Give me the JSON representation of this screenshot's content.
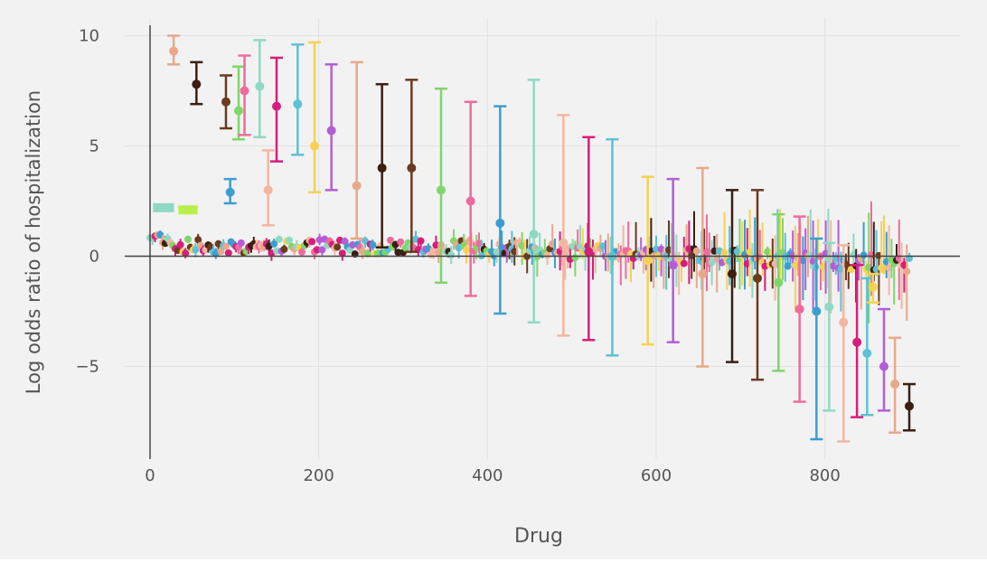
{
  "colors": {
    "background": "#f2f2f2",
    "grid": "#e2e2e2",
    "axis": "#444444",
    "text": "#555555",
    "palette": [
      "#e8a88a",
      "#3b9ed1",
      "#f7d154",
      "#7fd66a",
      "#d61f7a",
      "#3b1f12",
      "#8fd8c4",
      "#b35ed6",
      "#f06a9e",
      "#5cc1d6",
      "#6b3a1f",
      "#f4b6a0"
    ]
  },
  "chart_data": {
    "type": "scatter",
    "title": "",
    "xlabel": "Drug",
    "ylabel": "Log odds ratio of hospitalization",
    "xlim": [
      -30,
      960
    ],
    "ylim": [
      -9.2,
      10.8
    ],
    "xticks": [
      0,
      200,
      400,
      600,
      800
    ],
    "yticks": [
      -5,
      0,
      5,
      10
    ],
    "xtick_labels": [
      "0",
      "200",
      "400",
      "600",
      "800"
    ],
    "ytick_labels": [
      "−5",
      "0",
      "5",
      "10"
    ],
    "grid": true,
    "error_bars": true,
    "series": [
      {
        "points": [
          {
            "x": 28,
            "y": 9.3,
            "lo": 8.7,
            "hi": 10.0
          },
          {
            "x": 55,
            "y": 7.8,
            "lo": 6.9,
            "hi": 8.8
          },
          {
            "x": 90,
            "y": 7.0,
            "lo": 5.8,
            "hi": 8.2
          },
          {
            "x": 105,
            "y": 6.6,
            "lo": 5.3,
            "hi": 8.6
          },
          {
            "x": 112,
            "y": 7.5,
            "lo": 5.5,
            "hi": 9.1
          },
          {
            "x": 95,
            "y": 2.9,
            "lo": 2.4,
            "hi": 3.5
          },
          {
            "x": 130,
            "y": 7.7,
            "lo": 5.4,
            "hi": 9.8
          },
          {
            "x": 140,
            "y": 3.0,
            "lo": 1.4,
            "hi": 4.8
          },
          {
            "x": 150,
            "y": 6.8,
            "lo": 4.3,
            "hi": 9.0
          },
          {
            "x": 175,
            "y": 6.9,
            "lo": 4.6,
            "hi": 9.6
          },
          {
            "x": 195,
            "y": 5.0,
            "lo": 2.9,
            "hi": 9.7
          },
          {
            "x": 215,
            "y": 5.7,
            "lo": 3.0,
            "hi": 8.7
          },
          {
            "x": 245,
            "y": 3.2,
            "lo": 0.8,
            "hi": 8.8
          },
          {
            "x": 275,
            "y": 4.0,
            "lo": 0.4,
            "hi": 7.8
          },
          {
            "x": 310,
            "y": 4.0,
            "lo": 0.2,
            "hi": 8.0
          },
          {
            "x": 345,
            "y": 3.0,
            "lo": -1.2,
            "hi": 7.6
          },
          {
            "x": 380,
            "y": 2.5,
            "lo": -1.8,
            "hi": 7.0
          },
          {
            "x": 415,
            "y": 1.5,
            "lo": -2.6,
            "hi": 6.8
          },
          {
            "x": 455,
            "y": 1.0,
            "lo": -3.0,
            "hi": 8.0
          },
          {
            "x": 490,
            "y": 0.6,
            "lo": -3.6,
            "hi": 6.4
          },
          {
            "x": 520,
            "y": 0.2,
            "lo": -3.8,
            "hi": 5.4
          },
          {
            "x": 548,
            "y": 0.0,
            "lo": -4.5,
            "hi": 5.3
          },
          {
            "x": 590,
            "y": -0.2,
            "lo": -4.0,
            "hi": 3.6
          },
          {
            "x": 620,
            "y": -0.4,
            "lo": -3.9,
            "hi": 3.5
          },
          {
            "x": 655,
            "y": -0.8,
            "lo": -5.0,
            "hi": 4.0
          },
          {
            "x": 690,
            "y": -0.8,
            "lo": -4.8,
            "hi": 3.0
          },
          {
            "x": 720,
            "y": -1.0,
            "lo": -5.6,
            "hi": 3.0
          },
          {
            "x": 745,
            "y": -1.2,
            "lo": -5.2,
            "hi": 1.9
          },
          {
            "x": 770,
            "y": -2.4,
            "lo": -6.6,
            "hi": 1.8
          },
          {
            "x": 790,
            "y": -2.5,
            "lo": -8.3,
            "hi": 0.8
          },
          {
            "x": 805,
            "y": -2.3,
            "lo": -7.0,
            "hi": 0.6
          },
          {
            "x": 822,
            "y": -3.0,
            "lo": -8.4,
            "hi": 0.5
          },
          {
            "x": 838,
            "y": -3.9,
            "lo": -7.3,
            "hi": -0.4
          },
          {
            "x": 850,
            "y": -4.4,
            "lo": -7.2,
            "hi": -1.0
          },
          {
            "x": 857,
            "y": -1.4,
            "lo": -2.1,
            "hi": -0.8
          },
          {
            "x": 870,
            "y": -5.0,
            "lo": -7.0,
            "hi": -2.4
          },
          {
            "x": 883,
            "y": -5.8,
            "lo": -8.0,
            "hi": -3.7
          },
          {
            "x": 900,
            "y": -6.8,
            "lo": -7.9,
            "hi": -5.8
          }
        ]
      }
    ]
  }
}
